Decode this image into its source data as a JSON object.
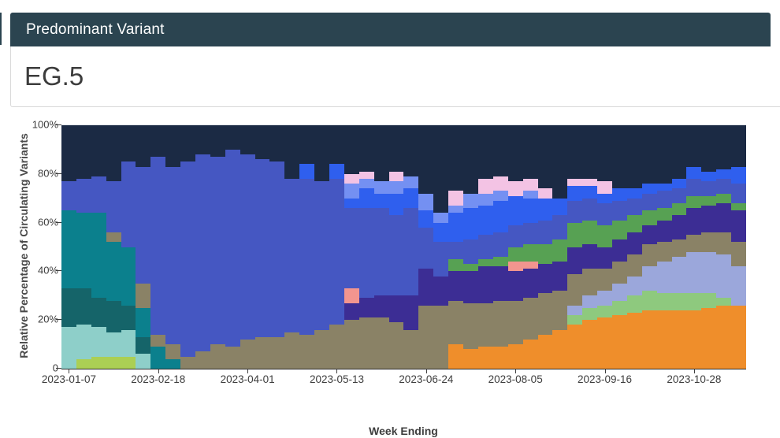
{
  "panel": {
    "title": "Predominant Variant",
    "value": "EG.5"
  },
  "chart_data": {
    "type": "bar",
    "variant": "stacked-percentage",
    "title": "",
    "xlabel": "Week Ending",
    "ylabel": "Relative Percentage of Circulating Variants",
    "ylim": [
      0,
      100
    ],
    "grid": false,
    "legend": "none",
    "y_ticks": [
      {
        "value": 0,
        "label": "0"
      },
      {
        "value": 20,
        "label": "20%"
      },
      {
        "value": 40,
        "label": "40%"
      },
      {
        "value": 60,
        "label": "60%"
      },
      {
        "value": 80,
        "label": "80%"
      },
      {
        "value": 100,
        "label": "100%"
      }
    ],
    "x_tick_indices": [
      0,
      6,
      12,
      18,
      24,
      30,
      36,
      42
    ],
    "x_tick_labels": [
      "2023-01-07",
      "2023-02-18",
      "2023-04-01",
      "2023-05-13",
      "2023-06-24",
      "2023-08-05",
      "2023-09-16",
      "2023-10-28"
    ],
    "categories": [
      "2023-01-07",
      "2023-01-14",
      "2023-01-21",
      "2023-01-28",
      "2023-02-04",
      "2023-02-11",
      "2023-02-18",
      "2023-02-25",
      "2023-03-04",
      "2023-03-11",
      "2023-03-18",
      "2023-03-25",
      "2023-04-01",
      "2023-04-08",
      "2023-04-15",
      "2023-04-22",
      "2023-04-29",
      "2023-05-06",
      "2023-05-13",
      "2023-05-20",
      "2023-05-27",
      "2023-06-03",
      "2023-06-10",
      "2023-06-17",
      "2023-06-24",
      "2023-07-01",
      "2023-07-08",
      "2023-07-15",
      "2023-07-22",
      "2023-07-29",
      "2023-08-05",
      "2023-08-12",
      "2023-08-19",
      "2023-08-26",
      "2023-09-02",
      "2023-09-09",
      "2023-09-16",
      "2023-09-23",
      "2023-09-30",
      "2023-10-07",
      "2023-10-14",
      "2023-10-21",
      "2023-10-28",
      "2023-11-04",
      "2023-11-11",
      "2023-11-18"
    ],
    "palette": {
      "navy": "#1B2A44",
      "royal": "#4557C2",
      "brightblue": "#2F5FEE",
      "skyblue": "#7490F2",
      "pink": "#F3C3E4",
      "salmon": "#F2958F",
      "indigo": "#3C2D94",
      "green": "#57A153",
      "olive": "#8A8266",
      "teal": "#0B808D",
      "darkteal": "#156469",
      "aqua": "#8ECFC9",
      "ygreen": "#ABCF54",
      "periwinkle": "#9BA7DB",
      "lightgreen": "#8EC97E",
      "orange": "#EF8E2B"
    },
    "bars": [
      [
        [
          "aqua",
          17
        ],
        [
          "darkteal",
          16
        ],
        [
          "teal",
          32
        ],
        [
          "royal",
          12
        ],
        [
          "navy",
          23
        ]
      ],
      [
        [
          "ygreen",
          4
        ],
        [
          "aqua",
          14
        ],
        [
          "darkteal",
          15
        ],
        [
          "teal",
          31
        ],
        [
          "royal",
          14
        ],
        [
          "navy",
          22
        ]
      ],
      [
        [
          "ygreen",
          5
        ],
        [
          "aqua",
          12
        ],
        [
          "darkteal",
          12
        ],
        [
          "teal",
          35
        ],
        [
          "royal",
          15
        ],
        [
          "navy",
          21
        ]
      ],
      [
        [
          "ygreen",
          5
        ],
        [
          "aqua",
          10
        ],
        [
          "darkteal",
          13
        ],
        [
          "teal",
          24
        ],
        [
          "olive",
          4
        ],
        [
          "royal",
          21
        ],
        [
          "navy",
          23
        ]
      ],
      [
        [
          "ygreen",
          5
        ],
        [
          "aqua",
          11
        ],
        [
          "darkteal",
          10
        ],
        [
          "teal",
          24
        ],
        [
          "royal",
          35
        ],
        [
          "navy",
          15
        ]
      ],
      [
        [
          "aqua",
          6
        ],
        [
          "darkteal",
          7
        ],
        [
          "teal",
          12
        ],
        [
          "olive",
          10
        ],
        [
          "royal",
          48
        ],
        [
          "navy",
          17
        ]
      ],
      [
        [
          "teal",
          9
        ],
        [
          "olive",
          5
        ],
        [
          "royal",
          73
        ],
        [
          "navy",
          13
        ]
      ],
      [
        [
          "teal",
          4
        ],
        [
          "olive",
          6
        ],
        [
          "royal",
          73
        ],
        [
          "navy",
          17
        ]
      ],
      [
        [
          "olive",
          5
        ],
        [
          "royal",
          80
        ],
        [
          "navy",
          15
        ]
      ],
      [
        [
          "olive",
          7
        ],
        [
          "royal",
          81
        ],
        [
          "navy",
          12
        ]
      ],
      [
        [
          "olive",
          10
        ],
        [
          "royal",
          77
        ],
        [
          "navy",
          13
        ]
      ],
      [
        [
          "olive",
          9
        ],
        [
          "royal",
          81
        ],
        [
          "navy",
          10
        ]
      ],
      [
        [
          "olive",
          12
        ],
        [
          "royal",
          76
        ],
        [
          "navy",
          12
        ]
      ],
      [
        [
          "olive",
          13
        ],
        [
          "royal",
          73
        ],
        [
          "navy",
          14
        ]
      ],
      [
        [
          "olive",
          13
        ],
        [
          "royal",
          72
        ],
        [
          "navy",
          15
        ]
      ],
      [
        [
          "olive",
          15
        ],
        [
          "royal",
          63
        ],
        [
          "navy",
          22
        ]
      ],
      [
        [
          "olive",
          14
        ],
        [
          "royal",
          64
        ],
        [
          "brightblue",
          6
        ],
        [
          "navy",
          16
        ]
      ],
      [
        [
          "olive",
          16
        ],
        [
          "royal",
          61
        ],
        [
          "navy",
          23
        ]
      ],
      [
        [
          "olive",
          18
        ],
        [
          "royal",
          60
        ],
        [
          "brightblue",
          6
        ],
        [
          "navy",
          16
        ]
      ],
      [
        [
          "olive",
          20
        ],
        [
          "indigo",
          7
        ],
        [
          "salmon",
          6
        ],
        [
          "royal",
          33
        ],
        [
          "brightblue",
          4
        ],
        [
          "skyblue",
          6
        ],
        [
          "pink",
          4
        ],
        [
          "navy",
          20
        ]
      ],
      [
        [
          "olive",
          21
        ],
        [
          "indigo",
          8
        ],
        [
          "royal",
          37
        ],
        [
          "brightblue",
          8
        ],
        [
          "skyblue",
          4
        ],
        [
          "pink",
          3
        ],
        [
          "navy",
          19
        ]
      ],
      [
        [
          "olive",
          21
        ],
        [
          "indigo",
          9
        ],
        [
          "royal",
          36
        ],
        [
          "brightblue",
          6
        ],
        [
          "skyblue",
          5
        ],
        [
          "navy",
          23
        ]
      ],
      [
        [
          "olive",
          19
        ],
        [
          "indigo",
          11
        ],
        [
          "royal",
          33
        ],
        [
          "brightblue",
          9
        ],
        [
          "skyblue",
          5
        ],
        [
          "pink",
          4
        ],
        [
          "navy",
          19
        ]
      ],
      [
        [
          "olive",
          16
        ],
        [
          "indigo",
          14
        ],
        [
          "royal",
          36
        ],
        [
          "brightblue",
          8
        ],
        [
          "skyblue",
          5
        ],
        [
          "navy",
          21
        ]
      ],
      [
        [
          "olive",
          26
        ],
        [
          "indigo",
          15
        ],
        [
          "royal",
          17
        ],
        [
          "brightblue",
          7
        ],
        [
          "skyblue",
          7
        ],
        [
          "navy",
          28
        ]
      ],
      [
        [
          "olive",
          26
        ],
        [
          "indigo",
          12
        ],
        [
          "royal",
          14
        ],
        [
          "brightblue",
          8
        ],
        [
          "skyblue",
          4
        ],
        [
          "navy",
          36
        ]
      ],
      [
        [
          "orange",
          10
        ],
        [
          "olive",
          18
        ],
        [
          "indigo",
          12
        ],
        [
          "green",
          5
        ],
        [
          "royal",
          7
        ],
        [
          "brightblue",
          12
        ],
        [
          "skyblue",
          3
        ],
        [
          "pink",
          6
        ],
        [
          "navy",
          27
        ]
      ],
      [
        [
          "orange",
          8
        ],
        [
          "olive",
          19
        ],
        [
          "indigo",
          13
        ],
        [
          "green",
          3
        ],
        [
          "royal",
          10
        ],
        [
          "brightblue",
          13
        ],
        [
          "skyblue",
          6
        ],
        [
          "navy",
          28
        ]
      ],
      [
        [
          "orange",
          9
        ],
        [
          "olive",
          18
        ],
        [
          "indigo",
          15
        ],
        [
          "green",
          3
        ],
        [
          "royal",
          10
        ],
        [
          "brightblue",
          12
        ],
        [
          "skyblue",
          5
        ],
        [
          "pink",
          6
        ],
        [
          "navy",
          22
        ]
      ],
      [
        [
          "orange",
          9
        ],
        [
          "olive",
          19
        ],
        [
          "indigo",
          14
        ],
        [
          "green",
          4
        ],
        [
          "royal",
          10
        ],
        [
          "brightblue",
          13
        ],
        [
          "skyblue",
          4
        ],
        [
          "pink",
          6
        ],
        [
          "navy",
          21
        ]
      ],
      [
        [
          "orange",
          10
        ],
        [
          "olive",
          18
        ],
        [
          "indigo",
          12
        ],
        [
          "salmon",
          4
        ],
        [
          "green",
          6
        ],
        [
          "royal",
          9
        ],
        [
          "brightblue",
          12
        ],
        [
          "pink",
          6
        ],
        [
          "navy",
          23
        ]
      ],
      [
        [
          "orange",
          12
        ],
        [
          "olive",
          17
        ],
        [
          "indigo",
          12
        ],
        [
          "salmon",
          3
        ],
        [
          "green",
          7
        ],
        [
          "royal",
          9
        ],
        [
          "brightblue",
          10
        ],
        [
          "skyblue",
          3
        ],
        [
          "pink",
          5
        ],
        [
          "navy",
          22
        ]
      ],
      [
        [
          "orange",
          14
        ],
        [
          "olive",
          17
        ],
        [
          "indigo",
          12
        ],
        [
          "green",
          8
        ],
        [
          "royal",
          10
        ],
        [
          "brightblue",
          9
        ],
        [
          "pink",
          4
        ],
        [
          "navy",
          26
        ]
      ],
      [
        [
          "orange",
          16
        ],
        [
          "olive",
          16
        ],
        [
          "indigo",
          12
        ],
        [
          "green",
          9
        ],
        [
          "royal",
          10
        ],
        [
          "brightblue",
          7
        ],
        [
          "navy",
          30
        ]
      ],
      [
        [
          "orange",
          18
        ],
        [
          "lightgreen",
          4
        ],
        [
          "periwinkle",
          4
        ],
        [
          "olive",
          13
        ],
        [
          "indigo",
          11
        ],
        [
          "green",
          10
        ],
        [
          "royal",
          9
        ],
        [
          "brightblue",
          6
        ],
        [
          "pink",
          3
        ],
        [
          "navy",
          22
        ]
      ],
      [
        [
          "orange",
          20
        ],
        [
          "lightgreen",
          5
        ],
        [
          "periwinkle",
          5
        ],
        [
          "olive",
          11
        ],
        [
          "indigo",
          10
        ],
        [
          "green",
          10
        ],
        [
          "royal",
          9
        ],
        [
          "brightblue",
          5
        ],
        [
          "pink",
          3
        ],
        [
          "navy",
          22
        ]
      ],
      [
        [
          "orange",
          21
        ],
        [
          "lightgreen",
          5
        ],
        [
          "periwinkle",
          6
        ],
        [
          "olive",
          9
        ],
        [
          "indigo",
          9
        ],
        [
          "green",
          9
        ],
        [
          "royal",
          9
        ],
        [
          "brightblue",
          4
        ],
        [
          "pink",
          5
        ],
        [
          "navy",
          23
        ]
      ],
      [
        [
          "orange",
          22
        ],
        [
          "lightgreen",
          6
        ],
        [
          "periwinkle",
          7
        ],
        [
          "olive",
          9
        ],
        [
          "indigo",
          9
        ],
        [
          "green",
          8
        ],
        [
          "royal",
          8
        ],
        [
          "brightblue",
          5
        ],
        [
          "navy",
          26
        ]
      ],
      [
        [
          "orange",
          23
        ],
        [
          "lightgreen",
          7
        ],
        [
          "periwinkle",
          8
        ],
        [
          "olive",
          9
        ],
        [
          "indigo",
          9
        ],
        [
          "green",
          7
        ],
        [
          "royal",
          7
        ],
        [
          "brightblue",
          4
        ],
        [
          "navy",
          26
        ]
      ],
      [
        [
          "orange",
          24
        ],
        [
          "lightgreen",
          8
        ],
        [
          "periwinkle",
          10
        ],
        [
          "olive",
          9
        ],
        [
          "indigo",
          8
        ],
        [
          "green",
          6
        ],
        [
          "royal",
          7
        ],
        [
          "brightblue",
          4
        ],
        [
          "navy",
          24
        ]
      ],
      [
        [
          "orange",
          24
        ],
        [
          "lightgreen",
          7
        ],
        [
          "periwinkle",
          13
        ],
        [
          "olive",
          8
        ],
        [
          "indigo",
          9
        ],
        [
          "green",
          5
        ],
        [
          "royal",
          7
        ],
        [
          "brightblue",
          3
        ],
        [
          "navy",
          24
        ]
      ],
      [
        [
          "orange",
          24
        ],
        [
          "lightgreen",
          7
        ],
        [
          "periwinkle",
          15
        ],
        [
          "olive",
          7
        ],
        [
          "indigo",
          10
        ],
        [
          "green",
          5
        ],
        [
          "royal",
          6
        ],
        [
          "brightblue",
          4
        ],
        [
          "navy",
          22
        ]
      ],
      [
        [
          "orange",
          24
        ],
        [
          "lightgreen",
          7
        ],
        [
          "periwinkle",
          17
        ],
        [
          "olive",
          7
        ],
        [
          "indigo",
          11
        ],
        [
          "green",
          5
        ],
        [
          "royal",
          7
        ],
        [
          "brightblue",
          5
        ],
        [
          "navy",
          17
        ]
      ],
      [
        [
          "orange",
          25
        ],
        [
          "lightgreen",
          6
        ],
        [
          "periwinkle",
          17
        ],
        [
          "olive",
          8
        ],
        [
          "indigo",
          11
        ],
        [
          "green",
          4
        ],
        [
          "royal",
          6
        ],
        [
          "brightblue",
          4
        ],
        [
          "navy",
          19
        ]
      ],
      [
        [
          "orange",
          26
        ],
        [
          "lightgreen",
          3
        ],
        [
          "periwinkle",
          18
        ],
        [
          "olive",
          9
        ],
        [
          "indigo",
          12
        ],
        [
          "green",
          4
        ],
        [
          "royal",
          6
        ],
        [
          "brightblue",
          4
        ],
        [
          "navy",
          18
        ]
      ],
      [
        [
          "orange",
          26
        ],
        [
          "periwinkle",
          16
        ],
        [
          "olive",
          10
        ],
        [
          "indigo",
          13
        ],
        [
          "green",
          3
        ],
        [
          "royal",
          8
        ],
        [
          "brightblue",
          7
        ],
        [
          "navy",
          17
        ]
      ]
    ],
    "colors_note": {
      "header_bar": "#2B4450",
      "axis_text": "#3d3d3d"
    }
  }
}
